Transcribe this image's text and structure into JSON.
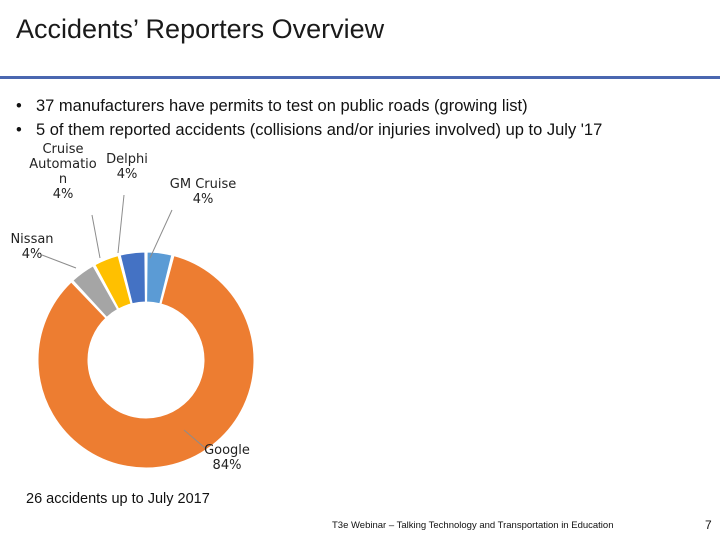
{
  "slide": {
    "title": "Accidents’ Reporters Overview",
    "bullets": [
      "37 manufacturers have permits to test on public roads (growing list)",
      "5 of them reported accidents (collisions and/or injuries involved) up to July '17"
    ],
    "bullet_glyph": "•",
    "caption": "26 accidents up to July 2017",
    "footer": "T3e Webinar – Talking Technology and Transportation in Education",
    "page_number": "7"
  },
  "chart_data": {
    "type": "pie",
    "subtype": "donut",
    "title": "",
    "slices": [
      {
        "name": "GM Cruise",
        "value": 4,
        "label_lines": [
          "GM Cruise",
          "4%"
        ],
        "color": "#5b9bd5"
      },
      {
        "name": "Google",
        "value": 84,
        "label_lines": [
          "Google",
          "84%"
        ],
        "color": "#ed7d31"
      },
      {
        "name": "Nissan",
        "value": 4,
        "label_lines": [
          "Nissan",
          "4%"
        ],
        "color": "#a5a5a5"
      },
      {
        "name": "Cruise Automation",
        "value": 4,
        "label_lines": [
          "Cruise",
          "Automatio",
          "n",
          "4%"
        ],
        "color": "#ffc000"
      },
      {
        "name": "Delphi",
        "value": 4,
        "label_lines": [
          "Delphi",
          "4%"
        ],
        "color": "#4472c4"
      }
    ]
  }
}
